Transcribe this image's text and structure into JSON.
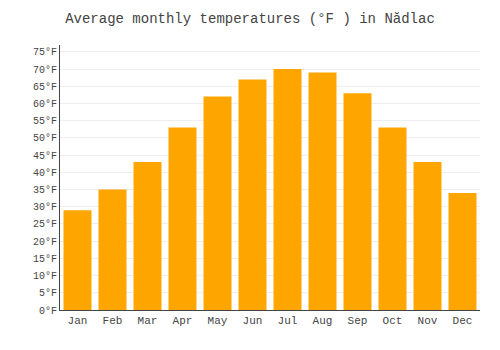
{
  "chart_data": {
    "type": "bar",
    "title": "Average monthly temperatures (°F ) in Nădlac",
    "categories": [
      "Jan",
      "Feb",
      "Mar",
      "Apr",
      "May",
      "Jun",
      "Jul",
      "Aug",
      "Sep",
      "Oct",
      "Nov",
      "Dec"
    ],
    "values": [
      29,
      35,
      43,
      53,
      62,
      67,
      70,
      69,
      63,
      53,
      43,
      34
    ],
    "color": "#FFA500",
    "ylim": [
      0,
      77
    ],
    "yticks": [
      {
        "value": 0,
        "label": "0°F"
      },
      {
        "value": 5,
        "label": "5°F"
      },
      {
        "value": 10,
        "label": "10°F"
      },
      {
        "value": 15,
        "label": "15°F"
      },
      {
        "value": 20,
        "label": "20°F"
      },
      {
        "value": 25,
        "label": "25°F"
      },
      {
        "value": 30,
        "label": "30°F"
      },
      {
        "value": 35,
        "label": "35°F"
      },
      {
        "value": 40,
        "label": "40°F"
      },
      {
        "value": 45,
        "label": "45°F"
      },
      {
        "value": 50,
        "label": "50°F"
      },
      {
        "value": 55,
        "label": "55°F"
      },
      {
        "value": 60,
        "label": "60°F"
      },
      {
        "value": 65,
        "label": "65°F"
      },
      {
        "value": 70,
        "label": "70°F"
      },
      {
        "value": 75,
        "label": "75°F"
      }
    ],
    "grid": true
  }
}
